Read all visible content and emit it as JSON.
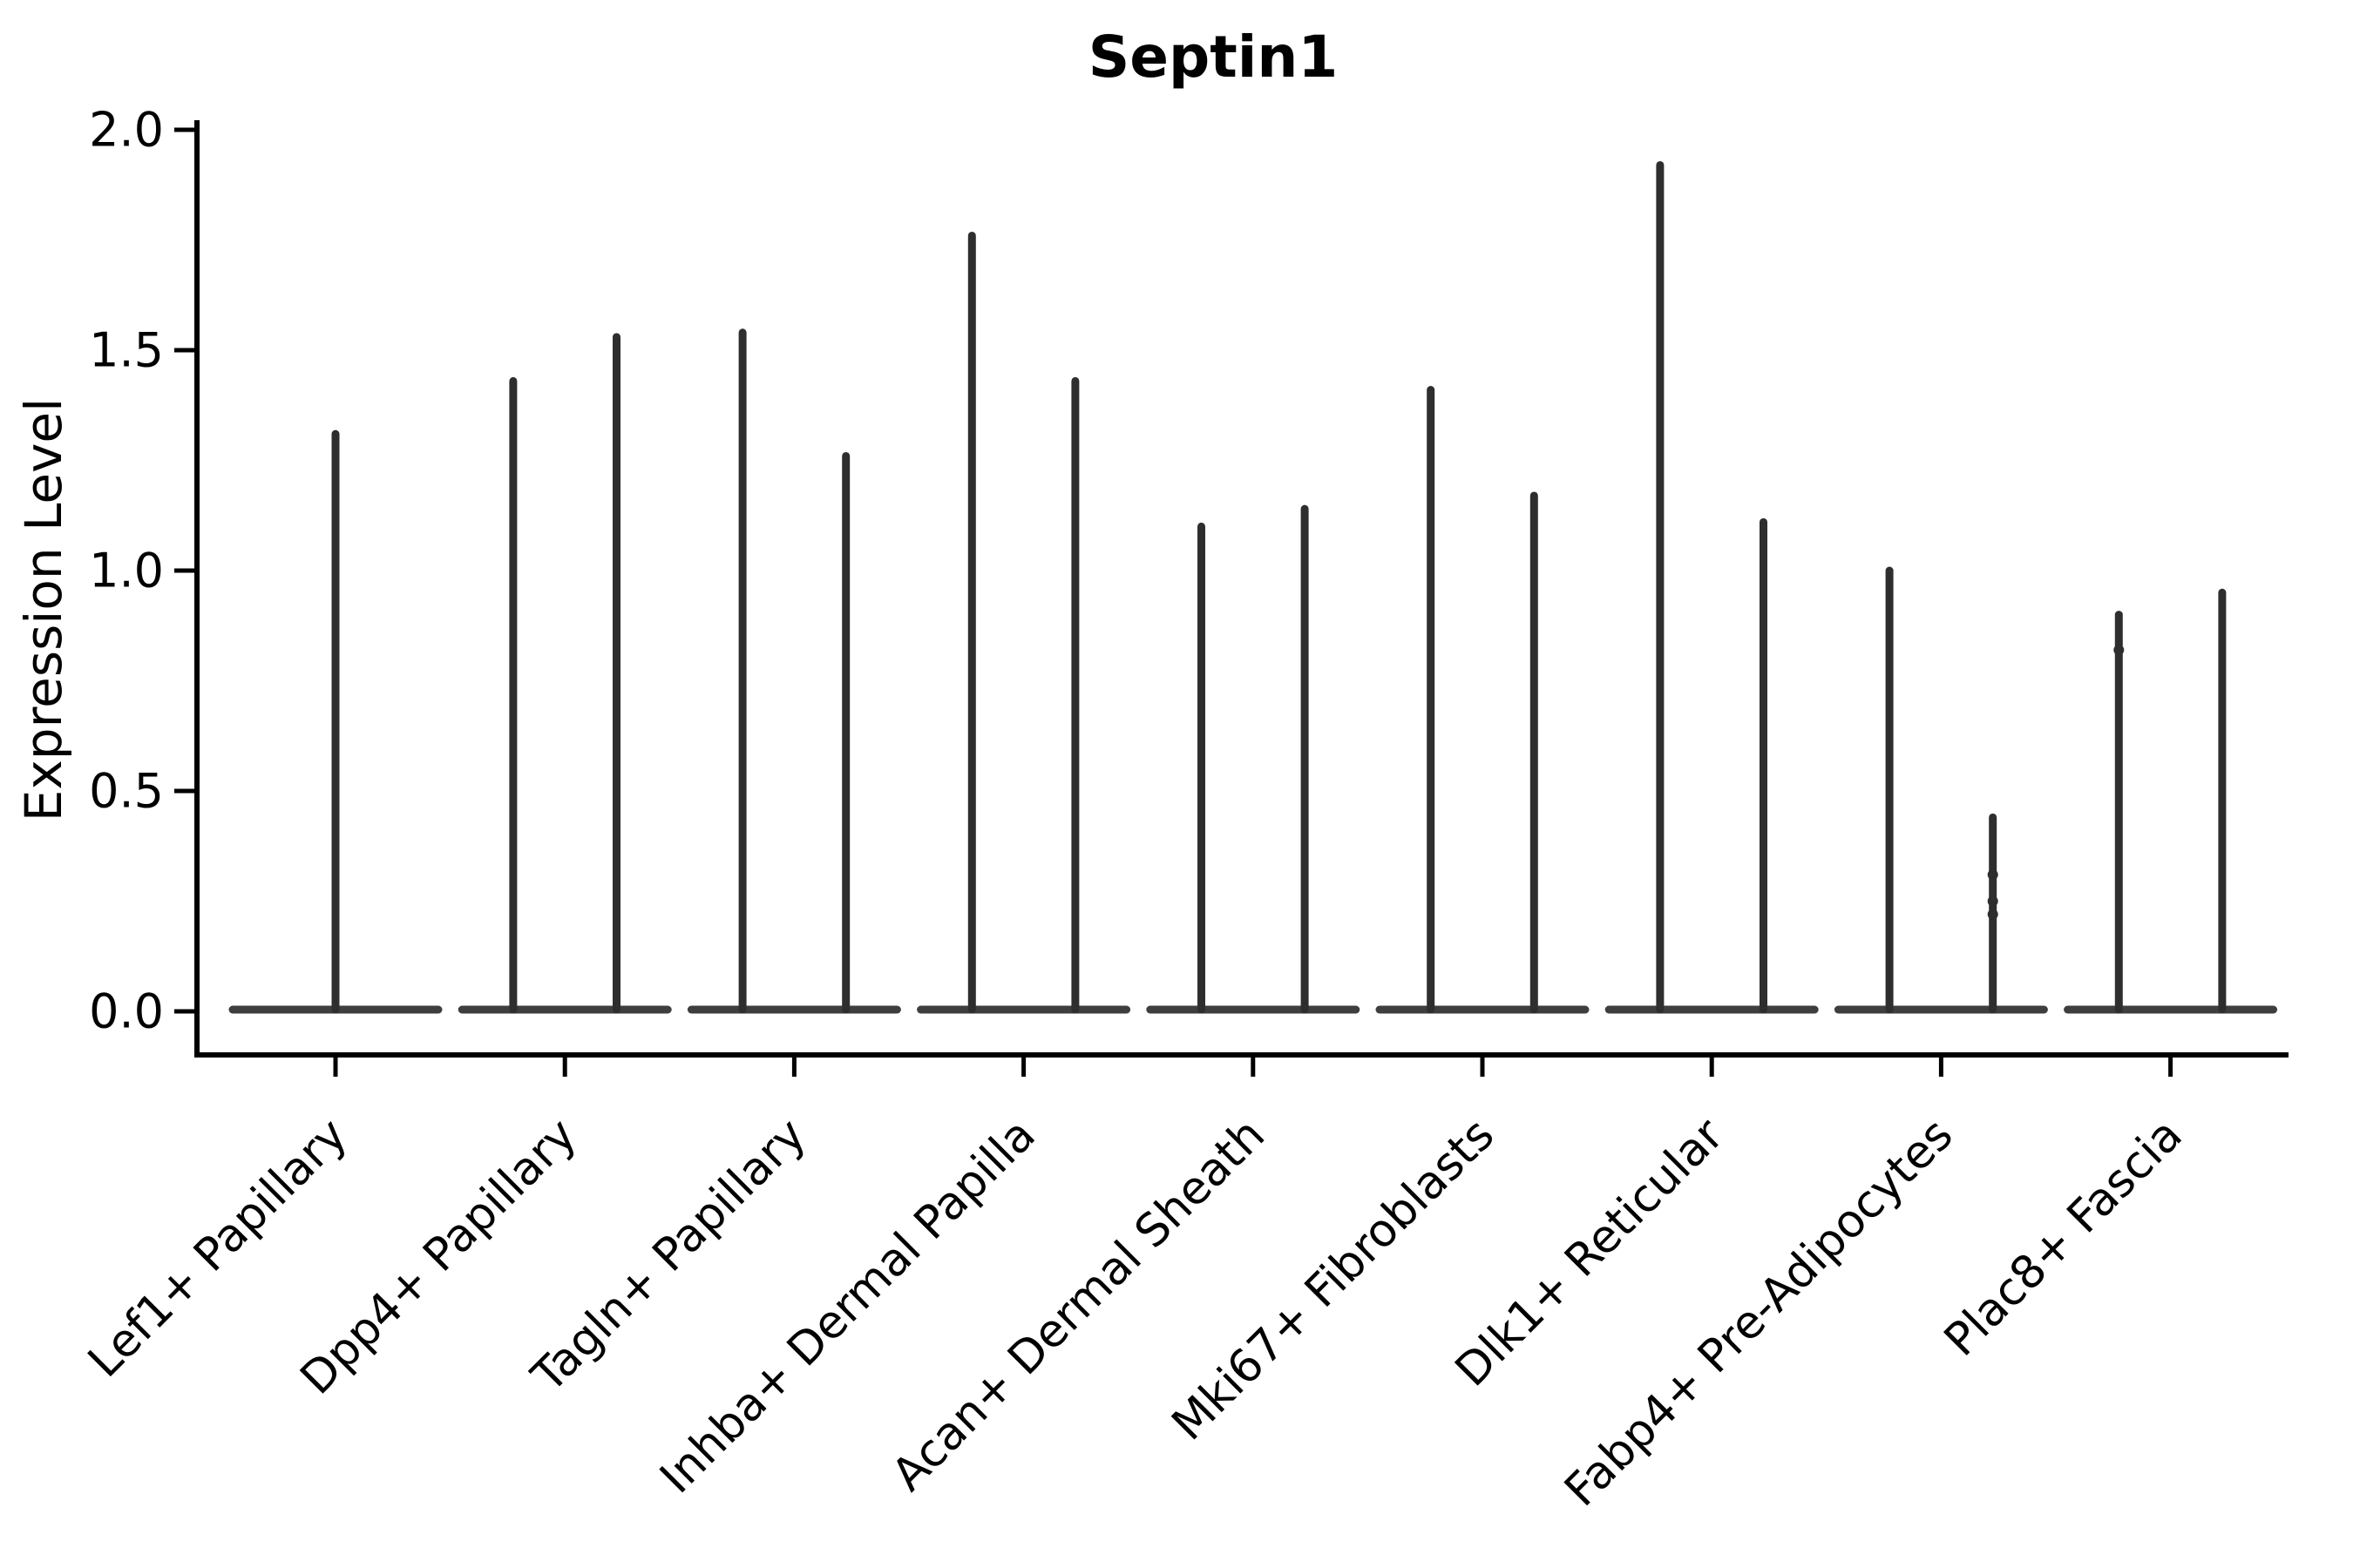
{
  "chart_data": {
    "type": "violin",
    "title": "Septin1",
    "xlabel": "",
    "ylabel": "Expression Level",
    "ylim": [
      -0.1,
      2.02
    ],
    "grid": false,
    "legend": null,
    "ytick_labels": [
      "0.0",
      "0.5",
      "1.0",
      "1.5",
      "2.0"
    ],
    "ytick_values": [
      0.0,
      0.5,
      1.0,
      1.5,
      2.0
    ],
    "colors": {
      "violin": "#2e2e2e",
      "axis": "#000000",
      "background": "#ffffff"
    },
    "categories": [
      {
        "label": "Lef1+ Papillary",
        "violins": [
          {
            "side": "center",
            "max": 1.31,
            "points": []
          }
        ]
      },
      {
        "label": "Dpp4+ Papillary",
        "violins": [
          {
            "side": "left",
            "max": 1.43,
            "points": []
          },
          {
            "side": "right",
            "max": 1.53,
            "points": []
          }
        ]
      },
      {
        "label": "Tagln+ Papillary",
        "violins": [
          {
            "side": "left",
            "max": 1.54,
            "points": []
          },
          {
            "side": "right",
            "max": 1.26,
            "points": []
          }
        ]
      },
      {
        "label": "Inhba+ Dermal Papilla",
        "violins": [
          {
            "side": "left",
            "max": 1.76,
            "points": []
          },
          {
            "side": "right",
            "max": 1.43,
            "points": []
          }
        ]
      },
      {
        "label": "Acan+ Dermal Sheath",
        "violins": [
          {
            "side": "left",
            "max": 1.1,
            "points": []
          },
          {
            "side": "right",
            "max": 1.14,
            "points": []
          }
        ]
      },
      {
        "label": "Mki67+ Fibroblasts",
        "violins": [
          {
            "side": "left",
            "max": 1.41,
            "points": []
          },
          {
            "side": "right",
            "max": 1.17,
            "points": []
          }
        ]
      },
      {
        "label": "Dlk1+ Reticular",
        "violins": [
          {
            "side": "left",
            "max": 1.92,
            "points": []
          },
          {
            "side": "right",
            "max": 1.11,
            "points": []
          }
        ]
      },
      {
        "label": "Fabp4+ Pre-Adipocytes",
        "violins": [
          {
            "side": "left",
            "max": 1.0,
            "points": []
          },
          {
            "side": "right",
            "max": 0.44,
            "points": [
              0.31,
              0.25,
              0.22
            ]
          }
        ]
      },
      {
        "label": "Plac8+ Fascia",
        "violins": [
          {
            "side": "left",
            "max": 0.9,
            "points": [
              0.82
            ]
          },
          {
            "side": "right",
            "max": 0.95,
            "points": []
          }
        ]
      }
    ]
  }
}
